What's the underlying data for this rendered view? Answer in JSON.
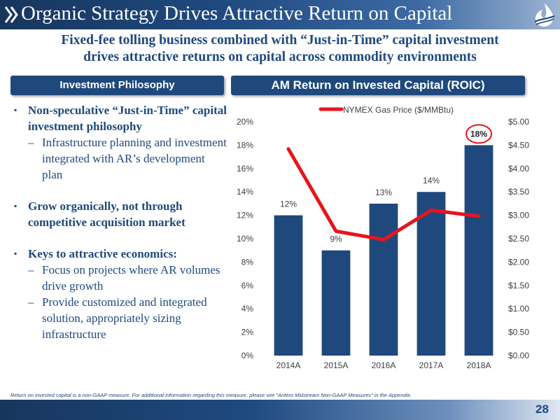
{
  "title": "Organic Strategy Drives Attractive Return on Capital",
  "subtitle_line1": "Fixed-fee tolling business combined with “Just-in-Time” capital investment",
  "subtitle_line2": "drives attractive returns on capital across commodity environments",
  "left_header": "Investment Philosophy",
  "right_header": "AM Return on Invested Capital (ROIC)",
  "bullets": [
    {
      "text": "Non-speculative “Just-in-Time” capital investment philosophy",
      "subs": [
        "Infrastructure planning and investment integrated with AR’s development plan"
      ]
    },
    {
      "text": "Grow organically, not through competitive acquisition market",
      "subs": []
    },
    {
      "text": "Keys to attractive economics:",
      "subs": [
        "Focus on projects where AR volumes drive growth",
        "Provide customized and integrated solution, appropriately sizing infrastructure"
      ]
    }
  ],
  "footnote": "Return on invested capital is a non-GAAP measure.  For additional information regarding this measure, please see “Antero Midstream Non-GAAP Measures” in the Appendix.",
  "page_number": "28",
  "colors": {
    "bar": "#1f497d",
    "line": "#e8141c",
    "text": "#1f497d",
    "highlight_circle": "#e8141c"
  },
  "chart_data": {
    "type": "bar",
    "categories": [
      "2014A",
      "2015A",
      "2016A",
      "2017A",
      "2018A"
    ],
    "series": [
      {
        "name": "ROIC",
        "type": "bar",
        "axis": "left",
        "values": [
          12,
          9,
          13,
          14,
          18
        ],
        "labels": [
          "12%",
          "9%",
          "13%",
          "14%",
          "18%"
        ]
      },
      {
        "name": "NYMEX Gas Price ($/MMBtu)",
        "type": "line",
        "axis": "right",
        "values": [
          4.42,
          2.66,
          2.48,
          3.11,
          2.98
        ]
      }
    ],
    "ylim": [
      0,
      20
    ],
    "y_ticks": [
      "0%",
      "2%",
      "4%",
      "6%",
      "8%",
      "10%",
      "12%",
      "14%",
      "16%",
      "18%",
      "20%"
    ],
    "y2lim": [
      0,
      5
    ],
    "y2_ticks": [
      "$0.00",
      "$0.50",
      "$1.00",
      "$1.50",
      "$2.00",
      "$2.50",
      "$3.00",
      "$3.50",
      "$4.00",
      "$4.50",
      "$5.00"
    ],
    "legend_position": "top",
    "grid": false,
    "highlighted_category": "2018A"
  }
}
